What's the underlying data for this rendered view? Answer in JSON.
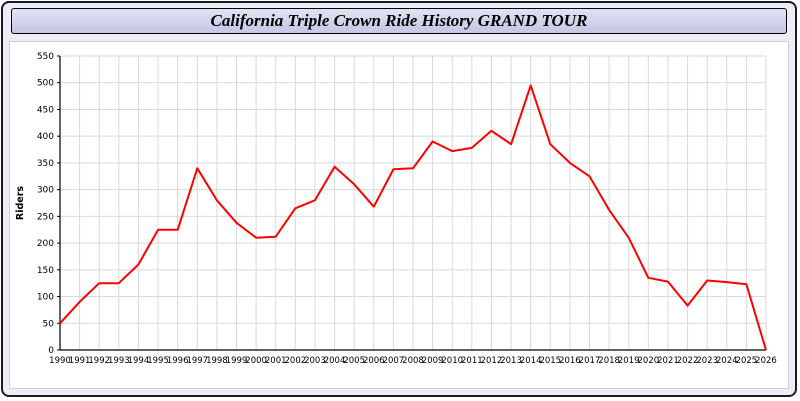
{
  "chart_data": {
    "type": "line",
    "title": "California Triple Crown Ride History GRAND TOUR",
    "xlabel": "",
    "ylabel": "Riders",
    "ylim": [
      0,
      550
    ],
    "ytick_step": 50,
    "grid": true,
    "line_color": "#ff0000",
    "grid_color": "#d9d9d9",
    "categories": [
      "1990",
      "1991",
      "1992",
      "1993",
      "1994",
      "1995",
      "1996",
      "1997",
      "1998",
      "1999",
      "2000",
      "2001",
      "2002",
      "2003",
      "2004",
      "2005",
      "2006",
      "2007",
      "2008",
      "2009",
      "2010",
      "2011",
      "2012",
      "2013",
      "2014",
      "2015",
      "2016",
      "2017",
      "2018",
      "2019",
      "2020",
      "2021",
      "2022",
      "2023",
      "2024",
      "2025",
      "2026"
    ],
    "series": [
      {
        "name": "Riders",
        "values": [
          50,
          90,
          125,
          125,
          160,
          225,
          225,
          340,
          280,
          238,
          210,
          212,
          265,
          280,
          343,
          310,
          268,
          338,
          340,
          390,
          372,
          378,
          410,
          385,
          495,
          385,
          350,
          325,
          262,
          210,
          135,
          128,
          83,
          130,
          127,
          123,
          0
        ]
      }
    ]
  }
}
